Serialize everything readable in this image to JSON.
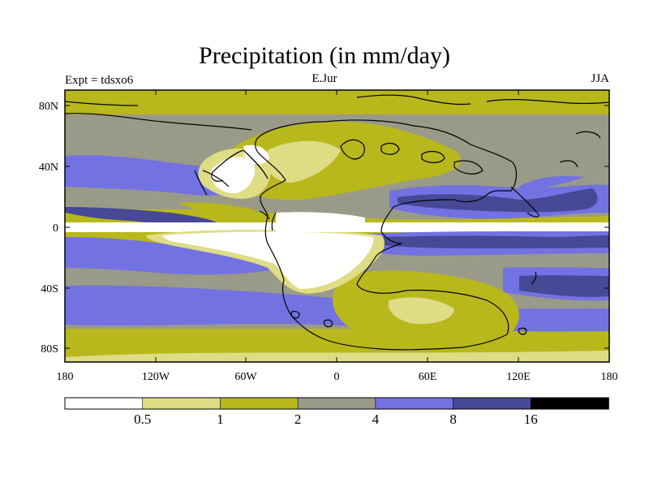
{
  "title": "Precipitation (in mm/day)",
  "experiment": "Expt = tdsxo6",
  "period": "E.Jur",
  "season": "JJA",
  "lat_labels": [
    "80N",
    "40N",
    "0",
    "40S",
    "80S"
  ],
  "lon_labels": [
    "180",
    "120W",
    "60W",
    "0",
    "60E",
    "120E",
    "180"
  ],
  "colorbar": {
    "tick_labels": [
      "0.5",
      "1",
      "2",
      "4",
      "8",
      "16"
    ],
    "colors": [
      "#ffffff",
      "#dedd85",
      "#b8b81c",
      "#9a9a88",
      "#7272e2",
      "#474896",
      "#000000"
    ]
  },
  "colors": {
    "white": "#ffffff",
    "pale": "#dedd85",
    "olive": "#b8b81c",
    "gray": "#9a9a88",
    "blue": "#7272e2",
    "navy": "#474896"
  }
}
